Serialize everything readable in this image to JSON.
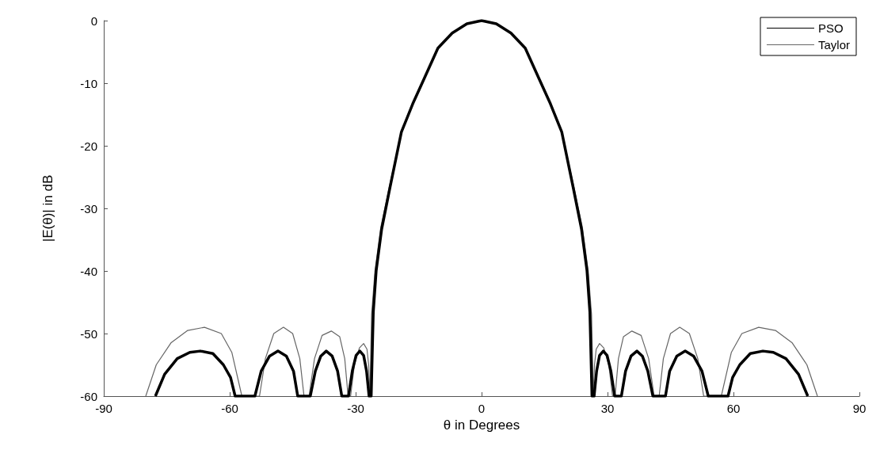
{
  "chart_data": {
    "type": "line",
    "xlabel": "θ in Degrees",
    "ylabel": "|E(θ)| in dB",
    "xlim": [
      -90,
      90
    ],
    "xticks": [
      -90,
      -60,
      -30,
      0,
      30,
      60,
      90
    ],
    "ylim": [
      -60,
      0
    ],
    "yticks": [
      -60,
      -50,
      -40,
      -30,
      -20,
      -10,
      0
    ],
    "grid": false,
    "legend": "top right",
    "marker": "none",
    "line_style": "solid",
    "series": [
      {
        "name": "PSO",
        "color": "#000000",
        "x": [
          -77.7,
          -75.5,
          -72.5,
          -69.5,
          -67,
          -64,
          -61.5,
          -59.8,
          -58.7,
          -54,
          -52.5,
          -50.5,
          -48.5,
          -46.5,
          -44.8,
          -43.8,
          -40.8,
          -39.6,
          -38.3,
          -37,
          -35.6,
          -34.3,
          -33.3,
          -31.7,
          -30.8,
          -29.9,
          -29,
          -28.1,
          -27.4,
          -26.8,
          -26.3,
          -25.8,
          -25.1,
          -23.8,
          -21.8,
          -19.1,
          -16.4,
          -13.7,
          -10.4,
          -7,
          -3.5,
          0,
          3.5,
          7,
          10.4,
          13.7,
          16.4,
          19.1,
          21.8,
          23.8,
          25.1,
          25.8,
          26.3,
          26.8,
          27.4,
          28.1,
          29,
          29.9,
          30.8,
          31.7,
          33.3,
          34.3,
          35.6,
          37,
          38.3,
          39.6,
          40.8,
          43.8,
          44.8,
          46.5,
          48.5,
          50.5,
          52.5,
          54,
          58.7,
          59.8,
          61.5,
          64,
          67,
          69.5,
          72.5,
          75.5,
          77.7
        ],
        "values": [
          -60,
          -56.5,
          -54,
          -53,
          -52.8,
          -53.2,
          -55,
          -57,
          -60,
          -60,
          -56,
          -53.6,
          -52.8,
          -53.6,
          -56,
          -60,
          -60,
          -56,
          -53.6,
          -52.8,
          -53.6,
          -56,
          -60,
          -60,
          -56,
          -53.5,
          -52.8,
          -53.5,
          -56,
          -60,
          -60,
          -46.6,
          -39.9,
          -33.3,
          -26.6,
          -17.8,
          -13.3,
          -9.3,
          -4.4,
          -2,
          -0.5,
          0,
          -0.5,
          -2,
          -4.4,
          -9.3,
          -13.3,
          -17.8,
          -26.6,
          -33.3,
          -39.9,
          -46.6,
          -60,
          -60,
          -56,
          -53.5,
          -52.8,
          -53.5,
          -56,
          -60,
          -60,
          -56,
          -53.6,
          -52.8,
          -53.6,
          -56,
          -60,
          -60,
          -56,
          -53.6,
          -52.8,
          -53.6,
          -56,
          -60,
          -60,
          -57,
          -55,
          -53.2,
          -52.8,
          -53,
          -54,
          -56.5,
          -60
        ]
      },
      {
        "name": "Taylor",
        "color": "#666666",
        "x": [
          -80,
          -77.5,
          -74,
          -70,
          -66,
          -62,
          -59.5,
          -57.1,
          -52.9,
          -51.5,
          -49.5,
          -47.2,
          -45,
          -43.3,
          -42.3,
          -41.1,
          -39.8,
          -38,
          -35.8,
          -33.8,
          -32.6,
          -31.8,
          -31.2,
          -30.3,
          -29.1,
          -28.1,
          -27.3,
          -26.9,
          -26.6,
          -26.2,
          -25.4,
          -24,
          -22,
          -19.1,
          -16.4,
          -13.7,
          -10.4,
          -7,
          -3.5,
          0,
          3.5,
          7,
          10.4,
          13.7,
          16.4,
          19.1,
          22,
          24,
          25.4,
          26.2,
          26.6,
          26.9,
          27.3,
          28.1,
          29.1,
          30.3,
          31.2,
          31.8,
          32.6,
          33.8,
          35.8,
          38,
          39.8,
          41.1,
          42.3,
          43.3,
          45,
          47.2,
          49.5,
          51.5,
          52.9,
          57.1,
          59.5,
          62,
          66,
          70,
          74,
          77.5,
          80
        ],
        "values": [
          -60,
          -55,
          -51.5,
          -49.5,
          -49,
          -50,
          -53,
          -60,
          -60,
          -54,
          -50,
          -49,
          -50,
          -54,
          -60,
          -60,
          -54,
          -50.3,
          -49.6,
          -50.5,
          -54,
          -60,
          -60,
          -55,
          -52.3,
          -51.6,
          -52.5,
          -55,
          -60,
          -47,
          -40,
          -33,
          -26.6,
          -17.8,
          -13.3,
          -9.3,
          -4.4,
          -2,
          -0.5,
          0,
          -0.5,
          -2,
          -4.4,
          -9.3,
          -13.3,
          -17.8,
          -26.6,
          -33,
          -40,
          -47,
          -60,
          -55,
          -52.5,
          -51.6,
          -52.3,
          -55,
          -60,
          -60,
          -54,
          -50.5,
          -49.6,
          -50.3,
          -54,
          -60,
          -60,
          -54,
          -50,
          -49,
          -50,
          -54,
          -60,
          -60,
          -53,
          -50,
          -49,
          -49.5,
          -51.5,
          -55,
          -60
        ]
      }
    ]
  }
}
